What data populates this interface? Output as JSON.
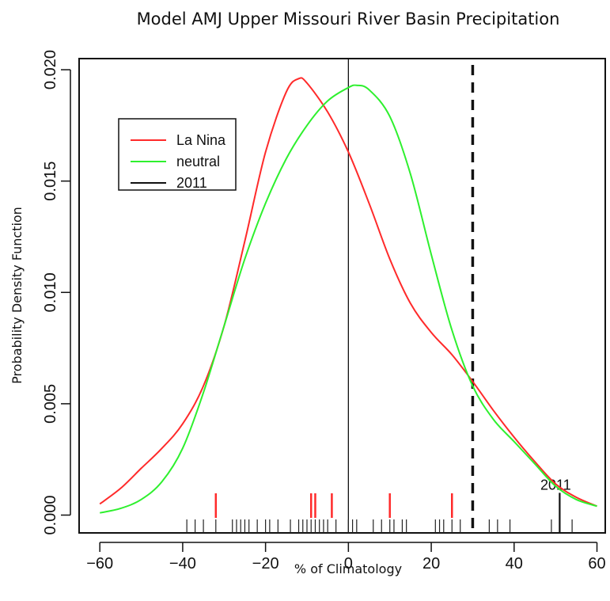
{
  "chart_data": {
    "type": "line",
    "title": "Model AMJ Upper Missouri River Basin Precipitation",
    "xlabel": "% of Climatology",
    "ylabel": "Probability Density Function",
    "xlim": [
      -65,
      62
    ],
    "ylim": [
      -0.0008,
      0.0205
    ],
    "x_ticks": [
      -60,
      -40,
      -20,
      0,
      20,
      40,
      60
    ],
    "x_tick_labels": [
      "−60",
      "−40",
      "−20",
      "0",
      "20",
      "40",
      "60"
    ],
    "y_ticks": [
      0.0,
      0.005,
      0.01,
      0.015,
      0.02
    ],
    "y_tick_labels": [
      "0.000",
      "0.005",
      "0.010",
      "0.015",
      "0.020"
    ],
    "grid": false,
    "legend_position": "top-left",
    "legend": [
      {
        "label": "La Nina",
        "color": "#ff2a2a"
      },
      {
        "label": "neutral",
        "color": "#2ef02e"
      },
      {
        "label": "2011",
        "color": "#111111"
      }
    ],
    "series": [
      {
        "name": "La Nina",
        "color": "#ff2a2a",
        "x": [
          -60,
          -55,
          -50,
          -45,
          -40,
          -35,
          -30,
          -25,
          -20,
          -15,
          -12,
          -10,
          -5,
          0,
          5,
          10,
          15,
          20,
          25,
          30,
          35,
          40,
          45,
          50,
          55,
          60
        ],
        "y": [
          0.0005,
          0.0012,
          0.0021,
          0.003,
          0.0041,
          0.0058,
          0.0085,
          0.0123,
          0.0163,
          0.019,
          0.0196,
          0.0194,
          0.0181,
          0.0163,
          0.014,
          0.0115,
          0.0095,
          0.0082,
          0.0072,
          0.006,
          0.0047,
          0.0035,
          0.0024,
          0.0014,
          0.0008,
          0.0004
        ]
      },
      {
        "name": "neutral",
        "color": "#2ef02e",
        "x": [
          -60,
          -55,
          -50,
          -45,
          -40,
          -35,
          -30,
          -25,
          -20,
          -15,
          -10,
          -5,
          0,
          2,
          5,
          10,
          15,
          20,
          25,
          30,
          35,
          40,
          45,
          50,
          55,
          60
        ],
        "y": [
          0.0001,
          0.0003,
          0.0007,
          0.0015,
          0.003,
          0.0055,
          0.0085,
          0.0115,
          0.014,
          0.016,
          0.0175,
          0.0186,
          0.0192,
          0.0193,
          0.0191,
          0.0179,
          0.0153,
          0.0117,
          0.0083,
          0.0058,
          0.0043,
          0.0033,
          0.0023,
          0.0013,
          0.0007,
          0.0004
        ]
      }
    ],
    "la_nina_rug": [
      -32,
      -9,
      -8,
      -4,
      10,
      25
    ],
    "all_years_rug": [
      -39,
      -37,
      -35,
      -32,
      -28,
      -27,
      -26,
      -25,
      -24,
      -22,
      -20,
      -19,
      -17,
      -14,
      -12,
      -11,
      -10,
      -9,
      -8,
      -7,
      -6,
      -5,
      -3,
      0,
      1,
      2,
      6,
      8,
      10,
      11,
      13,
      14,
      21,
      22,
      23,
      25,
      27,
      34,
      36,
      39,
      49,
      54
    ],
    "highlight_2011": {
      "x": 51,
      "y": 0.001,
      "label": "2011"
    },
    "vertical_lines": [
      {
        "x": 0,
        "style": "solid"
      },
      {
        "x": 30,
        "style": "dashed"
      }
    ]
  }
}
